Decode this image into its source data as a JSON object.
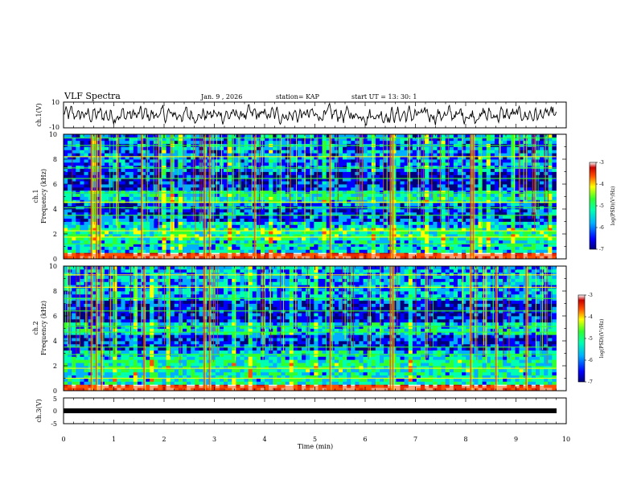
{
  "header": {
    "title": "VLF Spectra",
    "date": "Jan. 9 , 2026",
    "station": "station= KAP",
    "start": "start UT =   13: 30: 1"
  },
  "colors": {
    "c0": "#00007a",
    "c1": "#0000ff",
    "c2": "#00b0ff",
    "c3": "#00ffb0",
    "c4": "#30ff30",
    "c5": "#ffff00",
    "c6": "#ff5000",
    "c7": "#c80000",
    "c8": "#ffffff"
  },
  "chart_data": [
    {
      "type": "line",
      "name": "ch1-waveform",
      "ylabel": "ch.1(V)",
      "ylim": [
        -10,
        10
      ],
      "yticks": [
        "10",
        "-10"
      ],
      "xlim": [
        0,
        10
      ],
      "description_values": {
        "mean": 0,
        "amplitude_approx": 5
      }
    },
    {
      "type": "heatmap",
      "name": "ch1-spectrogram",
      "ylabel_channel": "ch.1",
      "ylabel": "Frequency (kHz)",
      "xlim": [
        0,
        10
      ],
      "ylim": [
        0,
        10
      ],
      "data_end_min": 9.8,
      "yticks": [
        "0",
        "2",
        "4",
        "6",
        "8",
        "10"
      ],
      "colorbar": {
        "label": "log(PSD)(V²/Hz)",
        "range": [
          -7,
          -3
        ],
        "ticks": [
          "-3",
          "-4",
          "-5",
          "-6",
          "-7"
        ]
      },
      "bands_khz": [
        {
          "lo": 0.0,
          "hi": 0.4,
          "level": -3.5
        },
        {
          "lo": 0.4,
          "hi": 1.4,
          "level": -5.6
        },
        {
          "lo": 1.4,
          "hi": 2.4,
          "level": -5.2
        },
        {
          "lo": 2.4,
          "hi": 3.0,
          "level": -5.7
        },
        {
          "lo": 3.0,
          "hi": 4.4,
          "level": -6.2
        },
        {
          "lo": 4.4,
          "hi": 5.5,
          "level": -5.5
        },
        {
          "lo": 5.5,
          "hi": 7.0,
          "level": -6.5
        },
        {
          "lo": 7.0,
          "hi": 10.0,
          "level": -6.0
        }
      ],
      "tones_khz": [
        1.2,
        1.75,
        2.25,
        3.5,
        4.1,
        4.55,
        5.3,
        6.45,
        7.3,
        8.2,
        9.1,
        9.7
      ],
      "bursts_min": [
        0.55,
        0.65,
        0.72,
        1.55,
        2.8,
        2.9,
        3.8,
        5.3,
        6.5,
        6.55,
        8.1,
        8.15
      ]
    },
    {
      "type": "heatmap",
      "name": "ch2-spectrogram",
      "ylabel_channel": "ch.2",
      "ylabel": "Frequency (kHz)",
      "xlim": [
        0,
        10
      ],
      "ylim": [
        0,
        10
      ],
      "data_end_min": 9.8,
      "yticks": [
        "0",
        "2",
        "4",
        "6",
        "8",
        "10"
      ],
      "colorbar": {
        "label": "log(PSD)(V²/Hz)",
        "range": [
          -7,
          -3
        ],
        "ticks": [
          "-3",
          "-4",
          "-5",
          "-6",
          "-7"
        ]
      },
      "bands_khz": [
        {
          "lo": 0.0,
          "hi": 0.4,
          "level": -3.5
        },
        {
          "lo": 0.4,
          "hi": 1.4,
          "level": -5.5
        },
        {
          "lo": 1.4,
          "hi": 2.4,
          "level": -5.3
        },
        {
          "lo": 2.4,
          "hi": 3.2,
          "level": -5.6
        },
        {
          "lo": 3.2,
          "hi": 4.6,
          "level": -6.3
        },
        {
          "lo": 4.6,
          "hi": 5.6,
          "level": -5.6
        },
        {
          "lo": 5.6,
          "hi": 7.2,
          "level": -6.4
        },
        {
          "lo": 7.2,
          "hi": 10.0,
          "level": -5.8
        }
      ],
      "tones_khz": [
        1.0,
        1.8,
        2.9,
        3.5,
        4.7,
        5.15,
        6.4,
        7.4,
        8.3,
        9.3
      ],
      "bursts_min": [
        0.55,
        0.65,
        0.75,
        1.6,
        2.8,
        2.9,
        5.3,
        6.5,
        6.55,
        8.1,
        8.6,
        9.2
      ]
    },
    {
      "type": "line",
      "name": "ch3-trace",
      "ylabel": "ch.3(V)",
      "ylim": [
        -5,
        5
      ],
      "yticks": [
        "5",
        "0",
        "-5"
      ],
      "xlim": [
        0,
        10
      ],
      "constant_value": -0.5
    }
  ],
  "xaxis": {
    "label": "Time (min)",
    "ticks": [
      "0",
      "1",
      "2",
      "3",
      "4",
      "5",
      "6",
      "7",
      "8",
      "9",
      "10"
    ]
  }
}
